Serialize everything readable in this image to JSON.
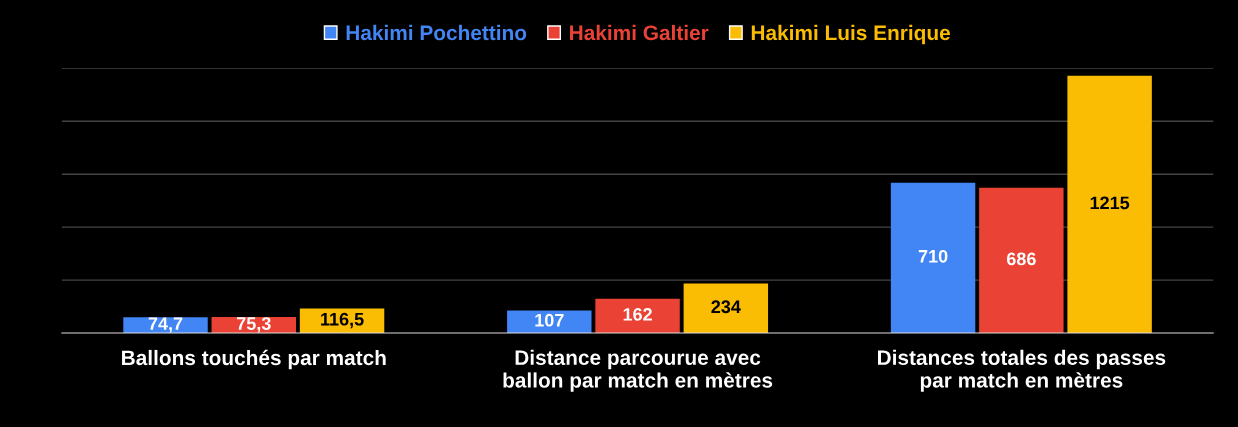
{
  "chart_data": {
    "type": "bar",
    "categories": [
      "Ballons touchés par match",
      "Distance parcourue avec\nballon par match en mètres",
      "Distances totales des passes\npar match en mètres"
    ],
    "series": [
      {
        "name": "Hakimi Pochettino",
        "color": "#4285f4",
        "values": [
          74.7,
          107,
          710
        ],
        "value_labels": [
          "74,7",
          "107",
          "710"
        ]
      },
      {
        "name": "Hakimi Galtier",
        "color": "#ea4335",
        "values": [
          75.3,
          162,
          686
        ],
        "value_labels": [
          "75,3",
          "162",
          "686"
        ]
      },
      {
        "name": "Hakimi Luis Enrique",
        "color": "#fbbc04",
        "values": [
          116.5,
          234,
          1215
        ],
        "value_labels": [
          "116,5",
          "234",
          "1215"
        ]
      }
    ],
    "ylim": [
      0,
      1250
    ],
    "yticks": [
      {
        "value": 250,
        "label": null
      },
      {
        "value": 500,
        "label": null
      },
      {
        "value": 750,
        "label": null
      },
      {
        "value": 1000,
        "label": null
      },
      {
        "value": 1250,
        "label": null
      }
    ],
    "grid": "y",
    "legend": "top"
  }
}
